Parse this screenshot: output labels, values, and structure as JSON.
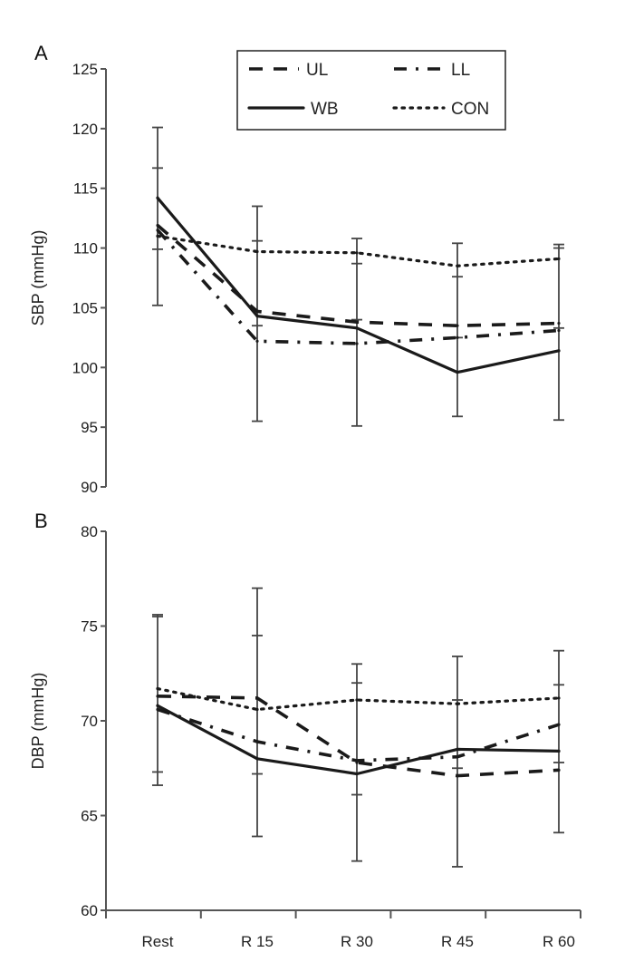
{
  "chart_data": [
    {
      "type": "line",
      "panel_label": "A",
      "title": "",
      "xlabel": "",
      "ylabel": "SBP (mmHg)",
      "ylim": [
        90,
        125
      ],
      "yticks": [
        "90",
        "95",
        "100",
        "105",
        "110",
        "115",
        "120",
        "125"
      ],
      "categories": [
        "Rest",
        "R 15",
        "R 30",
        "R 45",
        "R 60"
      ],
      "grid": false,
      "legend": {
        "placement": "top-right",
        "entries": [
          "UL",
          "LL",
          "WB",
          "CON"
        ]
      },
      "series": [
        {
          "name": "UL",
          "style": "dashed",
          "values": [
            111.9,
            104.7,
            103.8,
            103.5,
            103.7
          ]
        },
        {
          "name": "LL",
          "style": "dash-dot",
          "values": [
            111.5,
            102.2,
            102.0,
            102.5,
            103.1
          ]
        },
        {
          "name": "WB",
          "style": "solid",
          "values": [
            114.2,
            104.3,
            103.3,
            99.6,
            101.4
          ]
        },
        {
          "name": "CON",
          "style": "dotted",
          "values": [
            111.0,
            109.7,
            109.6,
            108.5,
            109.1
          ]
        }
      ],
      "error_bar_ends": [
        [
          120.1,
          116.7,
          109.9,
          105.2
        ],
        [
          113.5,
          110.6,
          103.5,
          95.5
        ],
        [
          110.8,
          108.7,
          104.0,
          95.1
        ],
        [
          110.4,
          107.6,
          102.5,
          95.9
        ],
        [
          110.3,
          110.0,
          103.3,
          95.6
        ]
      ]
    },
    {
      "type": "line",
      "panel_label": "B",
      "title": "",
      "xlabel": "",
      "ylabel": "DBP (mmHg)",
      "ylim": [
        60,
        80
      ],
      "yticks": [
        "60",
        "65",
        "70",
        "75",
        "80"
      ],
      "categories": [
        "Rest",
        "R 15",
        "R 30",
        "R 45",
        "R 60"
      ],
      "grid": false,
      "series": [
        {
          "name": "UL",
          "style": "dashed",
          "values": [
            71.3,
            71.2,
            67.8,
            67.1,
            67.4
          ]
        },
        {
          "name": "LL",
          "style": "dash-dot",
          "values": [
            70.6,
            68.9,
            67.9,
            68.1,
            69.8
          ]
        },
        {
          "name": "WB",
          "style": "solid",
          "values": [
            70.8,
            68.0,
            67.2,
            68.5,
            68.4
          ]
        },
        {
          "name": "CON",
          "style": "dotted",
          "values": [
            71.7,
            70.6,
            71.1,
            70.9,
            71.2
          ]
        }
      ],
      "error_bar_ends": [
        [
          75.6,
          75.5,
          67.3,
          66.6
        ],
        [
          77.0,
          74.5,
          67.2,
          63.9
        ],
        [
          73.0,
          72.0,
          66.1,
          62.6
        ],
        [
          73.4,
          71.1,
          67.5,
          62.3
        ],
        [
          73.7,
          71.9,
          67.8,
          64.1
        ]
      ]
    }
  ],
  "colors": {
    "line": "#1a1a1a",
    "axis": "#555555",
    "errorbar": "#444444",
    "background": "#ffffff"
  }
}
